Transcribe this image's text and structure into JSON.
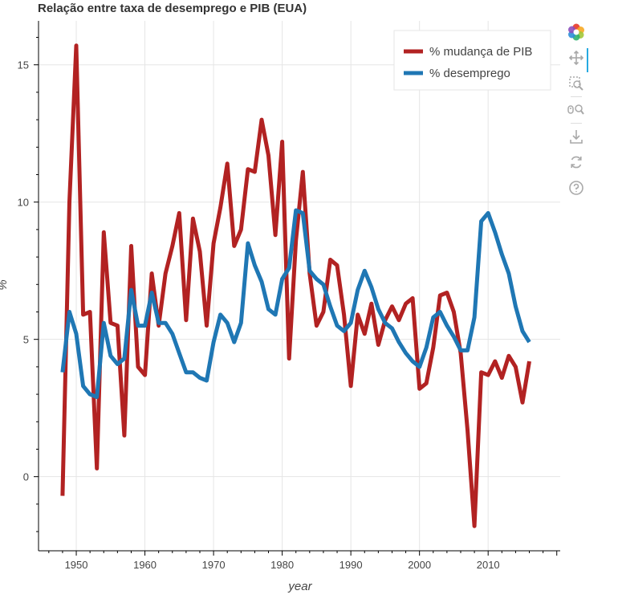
{
  "chart_data": {
    "type": "line",
    "title": "Relação entre taxa de desemprego e PIB (EUA)",
    "xlabel": "year",
    "ylabel": "%",
    "xlim": [
      1944.5,
      2020.5
    ],
    "ylim": [
      -2.7,
      16.6
    ],
    "x_ticks": [
      1950,
      1960,
      1970,
      1980,
      1990,
      2000,
      2010
    ],
    "y_ticks": [
      0,
      5,
      10,
      15
    ],
    "grid": true,
    "legend_position": "top-right",
    "x": [
      1948,
      1949,
      1950,
      1951,
      1952,
      1953,
      1954,
      1955,
      1956,
      1957,
      1958,
      1959,
      1960,
      1961,
      1962,
      1963,
      1964,
      1965,
      1966,
      1967,
      1968,
      1969,
      1970,
      1971,
      1972,
      1973,
      1974,
      1975,
      1976,
      1977,
      1978,
      1979,
      1980,
      1981,
      1982,
      1983,
      1984,
      1985,
      1986,
      1987,
      1988,
      1989,
      1990,
      1991,
      1992,
      1993,
      1994,
      1995,
      1996,
      1997,
      1998,
      1999,
      2000,
      2001,
      2002,
      2003,
      2004,
      2005,
      2006,
      2007,
      2008,
      2009,
      2010,
      2011,
      2012,
      2013,
      2014,
      2015,
      2016
    ],
    "series": [
      {
        "name": "% mudança de PIB",
        "color": "#b22222",
        "values": [
          -0.7,
          10.0,
          15.7,
          5.9,
          6.0,
          0.3,
          8.9,
          5.6,
          5.5,
          1.5,
          8.4,
          4.0,
          3.7,
          7.4,
          5.5,
          7.4,
          8.4,
          9.6,
          5.7,
          9.4,
          8.2,
          5.5,
          8.5,
          9.8,
          11.4,
          8.4,
          9.0,
          11.2,
          11.1,
          13.0,
          11.7,
          8.8,
          12.2,
          4.3,
          8.6,
          11.1,
          7.4,
          5.5,
          6.0,
          7.9,
          7.7,
          5.9,
          3.3,
          5.9,
          5.2,
          6.3,
          4.8,
          5.7,
          6.2,
          5.7,
          6.3,
          6.5,
          3.2,
          3.4,
          4.7,
          6.6,
          6.7,
          6.0,
          4.5,
          1.7,
          -1.8,
          3.8,
          3.7,
          4.2,
          3.6,
          4.4,
          4.0,
          2.7,
          4.2
        ]
      },
      {
        "name": "% desemprego",
        "color": "#1f77b4",
        "values": [
          3.8,
          6.0,
          5.2,
          3.3,
          3.0,
          2.9,
          5.6,
          4.4,
          4.1,
          4.3,
          6.8,
          5.5,
          5.5,
          6.7,
          5.6,
          5.6,
          5.2,
          4.5,
          3.8,
          3.8,
          3.6,
          3.5,
          4.9,
          5.9,
          5.6,
          4.9,
          5.6,
          8.5,
          7.7,
          7.1,
          6.1,
          5.9,
          7.2,
          7.6,
          9.7,
          9.6,
          7.5,
          7.2,
          7.0,
          6.2,
          5.5,
          5.3,
          5.6,
          6.8,
          7.5,
          6.9,
          6.1,
          5.6,
          5.4,
          4.9,
          4.5,
          4.2,
          4.0,
          4.7,
          5.8,
          6.0,
          5.5,
          5.1,
          4.6,
          4.6,
          5.8,
          9.3,
          9.6,
          8.9,
          8.1,
          7.4,
          6.2,
          5.3,
          4.9
        ]
      }
    ]
  },
  "toolbar": {
    "tools": [
      "bokeh-logo-icon",
      "pan-icon",
      "box-zoom-icon",
      "wheel-zoom-icon",
      "save-icon",
      "reset-icon",
      "help-icon"
    ]
  }
}
